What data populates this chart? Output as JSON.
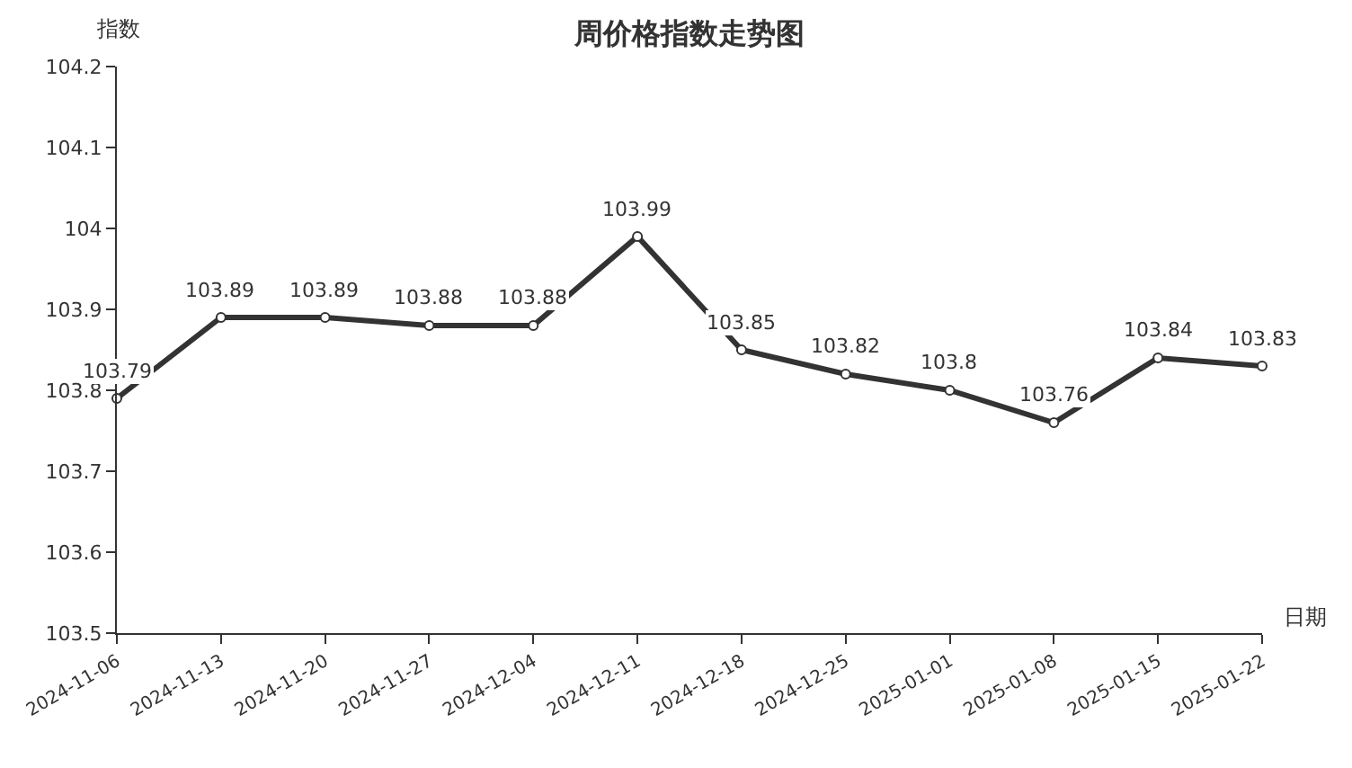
{
  "chart_data": {
    "type": "line",
    "title": "周价格指数走势图",
    "ylabel": "指数",
    "xlabel": "日期",
    "categories": [
      "2024-11-06",
      "2024-11-13",
      "2024-11-20",
      "2024-11-27",
      "2024-12-04",
      "2024-12-11",
      "2024-12-18",
      "2024-12-25",
      "2025-01-01",
      "2025-01-08",
      "2025-01-15",
      "2025-01-22"
    ],
    "values": [
      103.79,
      103.89,
      103.89,
      103.88,
      103.88,
      103.99,
      103.85,
      103.82,
      103.8,
      103.76,
      103.84,
      103.83
    ],
    "color": "#333333",
    "ylim": [
      103.5,
      104.2
    ],
    "yticks": [
      103.5,
      103.6,
      103.7,
      103.8,
      103.9,
      104,
      104.1,
      104.2
    ],
    "grid": false,
    "marker": "circle",
    "line_style": "solid",
    "data_labels": true
  }
}
